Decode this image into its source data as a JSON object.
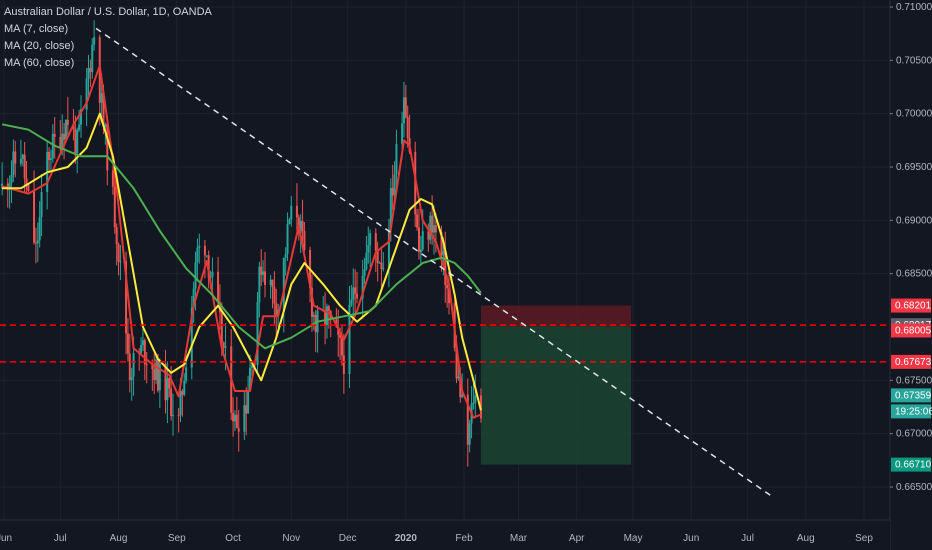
{
  "legend": {
    "title": "Australian Dollar / U.S. Dollar, 1D, OANDA",
    "ma": [
      "MA (7, close)",
      "MA (20, close)",
      "MA (60, close)"
    ]
  },
  "colors": {
    "background": "#131722",
    "up": "#26a69a",
    "down": "#ef5350",
    "ma7": "#e53935",
    "ma20": "#ffeb3b",
    "ma60": "#4caf50",
    "level_line": "#ff0000",
    "stop_zone": "#5d1a21",
    "target_zone": "#1b4332"
  },
  "chart_data": {
    "type": "candlestick",
    "symbol": "Australian Dollar / U.S. Dollar, 1D, OANDA",
    "y_range": [
      0.664,
      0.7105
    ],
    "y_ticks": [
      "0.71000",
      "0.70500",
      "0.70000",
      "0.69500",
      "0.69000",
      "0.68500",
      "0.67500",
      "0.67000",
      "0.66500"
    ],
    "x_labels": [
      "Jun",
      "Jul",
      "Aug",
      "Sep",
      "Oct",
      "Nov",
      "Dec",
      "2020",
      "Feb",
      "Mar",
      "Apr",
      "May",
      "Jun",
      "Jul",
      "Aug",
      "Sep"
    ],
    "x_label_bold": "2020",
    "price_path": [
      {
        "d": "2019-05-31",
        "p": 0.693
      },
      {
        "d": "2019-06-10",
        "p": 0.6965
      },
      {
        "d": "2019-06-18",
        "p": 0.687
      },
      {
        "d": "2019-06-24",
        "p": 0.696
      },
      {
        "d": "2019-07-05",
        "p": 0.6995
      },
      {
        "d": "2019-07-10",
        "p": 0.697
      },
      {
        "d": "2019-07-19",
        "p": 0.7075
      },
      {
        "d": "2019-07-24",
        "p": 0.699
      },
      {
        "d": "2019-07-31",
        "p": 0.689
      },
      {
        "d": "2019-08-07",
        "p": 0.676
      },
      {
        "d": "2019-08-14",
        "p": 0.678
      },
      {
        "d": "2019-08-20",
        "p": 0.676
      },
      {
        "d": "2019-08-27",
        "p": 0.674
      },
      {
        "d": "2019-09-02",
        "p": 0.671
      },
      {
        "d": "2019-09-12",
        "p": 0.687
      },
      {
        "d": "2019-09-16",
        "p": 0.688
      },
      {
        "d": "2019-09-25",
        "p": 0.679
      },
      {
        "d": "2019-10-02",
        "p": 0.671
      },
      {
        "d": "2019-10-08",
        "p": 0.673
      },
      {
        "d": "2019-10-16",
        "p": 0.686
      },
      {
        "d": "2019-10-25",
        "p": 0.682
      },
      {
        "d": "2019-10-31",
        "p": 0.69
      },
      {
        "d": "2019-11-04",
        "p": 0.691
      },
      {
        "d": "2019-11-14",
        "p": 0.68
      },
      {
        "d": "2019-11-20",
        "p": 0.681
      },
      {
        "d": "2019-11-29",
        "p": 0.677
      },
      {
        "d": "2019-12-04",
        "p": 0.683
      },
      {
        "d": "2019-12-13",
        "p": 0.688
      },
      {
        "d": "2019-12-20",
        "p": 0.686
      },
      {
        "d": "2019-12-31",
        "p": 0.702
      },
      {
        "d": "2020-01-02",
        "p": 0.699
      },
      {
        "d": "2020-01-08",
        "p": 0.687
      },
      {
        "d": "2020-01-15",
        "p": 0.69
      },
      {
        "d": "2020-01-22",
        "p": 0.685
      },
      {
        "d": "2020-01-28",
        "p": 0.676
      },
      {
        "d": "2020-02-03",
        "p": 0.669
      },
      {
        "d": "2020-02-06",
        "p": 0.6735
      },
      {
        "d": "2020-02-10",
        "p": 0.6725
      }
    ],
    "moving_averages": [
      {
        "name": "MA (7, close)",
        "points": [
          {
            "d": "2019-05-31",
            "p": 0.6932
          },
          {
            "d": "2019-06-14",
            "p": 0.6925
          },
          {
            "d": "2019-06-24",
            "p": 0.6935
          },
          {
            "d": "2019-07-08",
            "p": 0.699
          },
          {
            "d": "2019-07-15",
            "p": 0.701
          },
          {
            "d": "2019-07-22",
            "p": 0.7045
          },
          {
            "d": "2019-07-31",
            "p": 0.693
          },
          {
            "d": "2019-08-09",
            "p": 0.678
          },
          {
            "d": "2019-08-19",
            "p": 0.6765
          },
          {
            "d": "2019-08-28",
            "p": 0.6755
          },
          {
            "d": "2019-09-02",
            "p": 0.6735
          },
          {
            "d": "2019-09-10",
            "p": 0.682
          },
          {
            "d": "2019-09-17",
            "p": 0.6862
          },
          {
            "d": "2019-09-25",
            "p": 0.678
          },
          {
            "d": "2019-10-02",
            "p": 0.674
          },
          {
            "d": "2019-10-10",
            "p": 0.674
          },
          {
            "d": "2019-10-17",
            "p": 0.681
          },
          {
            "d": "2019-10-25",
            "p": 0.681
          },
          {
            "d": "2019-11-05",
            "p": 0.6895
          },
          {
            "d": "2019-11-13",
            "p": 0.682
          },
          {
            "d": "2019-11-22",
            "p": 0.6812
          },
          {
            "d": "2019-11-29",
            "p": 0.6788
          },
          {
            "d": "2019-12-06",
            "p": 0.6815
          },
          {
            "d": "2019-12-16",
            "p": 0.687
          },
          {
            "d": "2019-12-23",
            "p": 0.688
          },
          {
            "d": "2019-12-31",
            "p": 0.6975
          },
          {
            "d": "2020-01-03",
            "p": 0.697
          },
          {
            "d": "2020-01-10",
            "p": 0.69
          },
          {
            "d": "2020-01-17",
            "p": 0.688
          },
          {
            "d": "2020-01-24",
            "p": 0.684
          },
          {
            "d": "2020-01-31",
            "p": 0.674
          },
          {
            "d": "2020-02-06",
            "p": 0.6715
          },
          {
            "d": "2020-02-10",
            "p": 0.6718
          }
        ]
      },
      {
        "name": "MA (20, close)",
        "points": [
          {
            "d": "2019-05-31",
            "p": 0.693
          },
          {
            "d": "2019-06-10",
            "p": 0.693
          },
          {
            "d": "2019-06-24",
            "p": 0.6945
          },
          {
            "d": "2019-07-05",
            "p": 0.695
          },
          {
            "d": "2019-07-15",
            "p": 0.6968
          },
          {
            "d": "2019-07-22",
            "p": 0.7
          },
          {
            "d": "2019-07-29",
            "p": 0.696
          },
          {
            "d": "2019-08-07",
            "p": 0.687
          },
          {
            "d": "2019-08-14",
            "p": 0.68
          },
          {
            "d": "2019-08-22",
            "p": 0.677
          },
          {
            "d": "2019-08-29",
            "p": 0.6757
          },
          {
            "d": "2019-09-05",
            "p": 0.6765
          },
          {
            "d": "2019-09-13",
            "p": 0.68
          },
          {
            "d": "2019-09-23",
            "p": 0.682
          },
          {
            "d": "2019-10-01",
            "p": 0.68
          },
          {
            "d": "2019-10-10",
            "p": 0.677
          },
          {
            "d": "2019-10-16",
            "p": 0.675
          },
          {
            "d": "2019-10-24",
            "p": 0.679
          },
          {
            "d": "2019-11-01",
            "p": 0.684
          },
          {
            "d": "2019-11-08",
            "p": 0.686
          },
          {
            "d": "2019-11-18",
            "p": 0.684
          },
          {
            "d": "2019-11-27",
            "p": 0.682
          },
          {
            "d": "2019-12-06",
            "p": 0.6805
          },
          {
            "d": "2019-12-16",
            "p": 0.682
          },
          {
            "d": "2019-12-26",
            "p": 0.687
          },
          {
            "d": "2020-01-03",
            "p": 0.691
          },
          {
            "d": "2020-01-09",
            "p": 0.692
          },
          {
            "d": "2020-01-15",
            "p": 0.6915
          },
          {
            "d": "2020-01-21",
            "p": 0.688
          },
          {
            "d": "2020-01-27",
            "p": 0.683
          },
          {
            "d": "2020-01-31",
            "p": 0.679
          },
          {
            "d": "2020-02-06",
            "p": 0.675
          },
          {
            "d": "2020-02-10",
            "p": 0.6722
          }
        ]
      },
      {
        "name": "MA (60, close)",
        "points": [
          {
            "d": "2019-05-31",
            "p": 0.699
          },
          {
            "d": "2019-06-14",
            "p": 0.6985
          },
          {
            "d": "2019-06-28",
            "p": 0.697
          },
          {
            "d": "2019-07-12",
            "p": 0.696
          },
          {
            "d": "2019-07-26",
            "p": 0.696
          },
          {
            "d": "2019-08-09",
            "p": 0.693
          },
          {
            "d": "2019-08-23",
            "p": 0.689
          },
          {
            "d": "2019-09-06",
            "p": 0.6855
          },
          {
            "d": "2019-09-20",
            "p": 0.683
          },
          {
            "d": "2019-10-04",
            "p": 0.68
          },
          {
            "d": "2019-10-18",
            "p": 0.678
          },
          {
            "d": "2019-11-01",
            "p": 0.679
          },
          {
            "d": "2019-11-15",
            "p": 0.6805
          },
          {
            "d": "2019-11-29",
            "p": 0.681
          },
          {
            "d": "2019-12-13",
            "p": 0.6815
          },
          {
            "d": "2019-12-27",
            "p": 0.684
          },
          {
            "d": "2020-01-10",
            "p": 0.686
          },
          {
            "d": "2020-01-20",
            "p": 0.6865
          },
          {
            "d": "2020-01-27",
            "p": 0.686
          },
          {
            "d": "2020-02-03",
            "p": 0.6848
          },
          {
            "d": "2020-02-10",
            "p": 0.6832
          }
        ]
      }
    ],
    "trendline": {
      "start": {
        "d": "2019-07-20",
        "p": 0.708
      },
      "end": {
        "d": "2020-07-15",
        "p": 0.664
      },
      "style": "dashed",
      "color": "#e0e3eb"
    },
    "horizontal_levels": [
      0.68017,
      0.67673
    ],
    "position_tool": {
      "start": "2020-02-10",
      "end": "2020-04-30",
      "stop": 0.68201,
      "entry": 0.68005,
      "target": 0.6671
    },
    "price_tags": [
      {
        "value": "0.68201",
        "color": "#f23645"
      },
      {
        "value": "0.68017",
        "color": "#5d606b"
      },
      {
        "value": "0.68005",
        "color": "#f23645"
      },
      {
        "value": "0.67673",
        "color": "#f23645"
      },
      {
        "value": "0.67359",
        "color": "#26a69a"
      },
      {
        "value": "19:25:06",
        "color": "#26a69a"
      },
      {
        "value": "0.66710",
        "color": "#089981"
      }
    ],
    "last_price": 0.67359,
    "countdown": "19:25:06"
  }
}
